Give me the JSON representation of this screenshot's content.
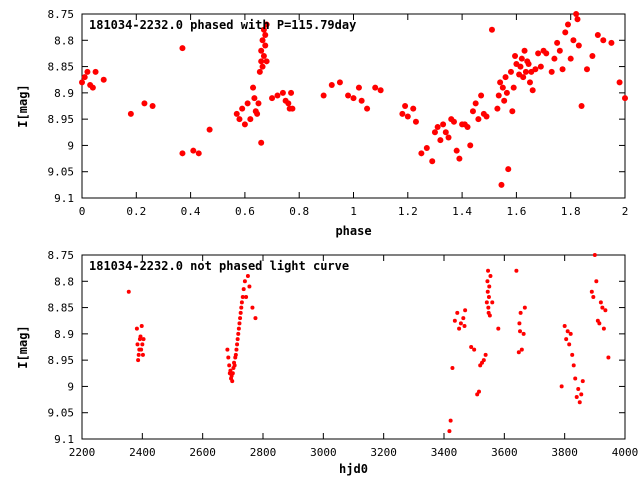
{
  "chart_data": [
    {
      "type": "scatter",
      "title": "181034-2232.0 phased with P=115.79day",
      "xlabel": "phase",
      "ylabel": "I[mag]",
      "xlim": [
        0,
        2
      ],
      "ylim": [
        8.75,
        9.1
      ],
      "y_inverted": true,
      "marker_color": "#ff0000",
      "x_ticks": [
        0,
        0.2,
        0.4,
        0.6,
        0.8,
        1,
        1.2,
        1.4,
        1.6,
        1.8,
        2
      ],
      "x_tick_labels": [
        "0",
        "0.2",
        "0.4",
        "0.6",
        "0.8",
        "1",
        "1.2",
        "1.4",
        "1.6",
        "1.8",
        "2"
      ],
      "y_ticks": [
        8.75,
        8.8,
        8.85,
        8.9,
        8.95,
        9,
        9.05,
        9.1
      ],
      "y_tick_labels": [
        "8.75",
        "8.8",
        "8.85",
        "8.9",
        "8.95",
        "9",
        "9.05",
        "9.1"
      ],
      "points": [
        [
          0.0,
          8.88
        ],
        [
          0.01,
          8.87
        ],
        [
          0.02,
          8.86
        ],
        [
          0.03,
          8.885
        ],
        [
          0.04,
          8.89
        ],
        [
          0.05,
          8.86
        ],
        [
          0.08,
          8.875
        ],
        [
          0.18,
          8.94
        ],
        [
          0.23,
          8.92
        ],
        [
          0.26,
          8.925
        ],
        [
          0.37,
          8.815
        ],
        [
          0.37,
          9.015
        ],
        [
          0.41,
          9.01
        ],
        [
          0.43,
          9.015
        ],
        [
          0.47,
          8.97
        ],
        [
          0.57,
          8.94
        ],
        [
          0.58,
          8.95
        ],
        [
          0.59,
          8.93
        ],
        [
          0.6,
          8.96
        ],
        [
          0.61,
          8.92
        ],
        [
          0.62,
          8.95
        ],
        [
          0.63,
          8.89
        ],
        [
          0.635,
          8.91
        ],
        [
          0.64,
          8.935
        ],
        [
          0.645,
          8.94
        ],
        [
          0.65,
          8.92
        ],
        [
          0.655,
          8.86
        ],
        [
          0.66,
          8.84
        ],
        [
          0.66,
          8.82
        ],
        [
          0.665,
          8.85
        ],
        [
          0.665,
          8.8
        ],
        [
          0.67,
          8.78
        ],
        [
          0.67,
          8.83
        ],
        [
          0.675,
          8.81
        ],
        [
          0.675,
          8.79
        ],
        [
          0.68,
          8.77
        ],
        [
          0.68,
          8.84
        ],
        [
          0.66,
          8.995
        ],
        [
          0.7,
          8.91
        ],
        [
          0.72,
          8.905
        ],
        [
          0.74,
          8.9
        ],
        [
          0.75,
          8.915
        ],
        [
          0.76,
          8.92
        ],
        [
          0.765,
          8.93
        ],
        [
          0.77,
          8.9
        ],
        [
          0.775,
          8.93
        ],
        [
          0.89,
          8.905
        ],
        [
          0.92,
          8.885
        ],
        [
          0.95,
          8.88
        ],
        [
          0.98,
          8.905
        ],
        [
          1.0,
          8.91
        ],
        [
          1.02,
          8.89
        ],
        [
          1.03,
          8.915
        ],
        [
          1.05,
          8.93
        ],
        [
          1.08,
          8.89
        ],
        [
          1.1,
          8.895
        ],
        [
          1.18,
          8.94
        ],
        [
          1.19,
          8.925
        ],
        [
          1.2,
          8.945
        ],
        [
          1.22,
          8.93
        ],
        [
          1.23,
          8.955
        ],
        [
          1.25,
          9.015
        ],
        [
          1.27,
          9.005
        ],
        [
          1.29,
          9.03
        ],
        [
          1.3,
          8.975
        ],
        [
          1.31,
          8.965
        ],
        [
          1.32,
          8.99
        ],
        [
          1.33,
          8.96
        ],
        [
          1.34,
          8.975
        ],
        [
          1.35,
          8.985
        ],
        [
          1.36,
          8.95
        ],
        [
          1.37,
          8.955
        ],
        [
          1.38,
          9.01
        ],
        [
          1.39,
          9.025
        ],
        [
          1.4,
          8.96
        ],
        [
          1.41,
          8.96
        ],
        [
          1.42,
          8.965
        ],
        [
          1.43,
          9.0
        ],
        [
          1.44,
          8.935
        ],
        [
          1.45,
          8.92
        ],
        [
          1.46,
          8.95
        ],
        [
          1.47,
          8.905
        ],
        [
          1.48,
          8.94
        ],
        [
          1.49,
          8.945
        ],
        [
          1.51,
          8.78
        ],
        [
          1.53,
          8.93
        ],
        [
          1.535,
          8.905
        ],
        [
          1.54,
          8.88
        ],
        [
          1.545,
          9.075
        ],
        [
          1.55,
          8.89
        ],
        [
          1.555,
          8.915
        ],
        [
          1.56,
          8.87
        ],
        [
          1.565,
          8.9
        ],
        [
          1.57,
          9.045
        ],
        [
          1.58,
          8.86
        ],
        [
          1.585,
          8.935
        ],
        [
          1.59,
          8.89
        ],
        [
          1.595,
          8.83
        ],
        [
          1.6,
          8.845
        ],
        [
          1.61,
          8.865
        ],
        [
          1.615,
          8.85
        ],
        [
          1.62,
          8.835
        ],
        [
          1.625,
          8.87
        ],
        [
          1.63,
          8.82
        ],
        [
          1.635,
          8.86
        ],
        [
          1.64,
          8.84
        ],
        [
          1.645,
          8.845
        ],
        [
          1.65,
          8.88
        ],
        [
          1.655,
          8.86
        ],
        [
          1.66,
          8.895
        ],
        [
          1.67,
          8.855
        ],
        [
          1.68,
          8.825
        ],
        [
          1.69,
          8.85
        ],
        [
          1.7,
          8.82
        ],
        [
          1.71,
          8.825
        ],
        [
          1.73,
          8.86
        ],
        [
          1.74,
          8.835
        ],
        [
          1.75,
          8.805
        ],
        [
          1.76,
          8.82
        ],
        [
          1.77,
          8.855
        ],
        [
          1.78,
          8.785
        ],
        [
          1.79,
          8.77
        ],
        [
          1.8,
          8.835
        ],
        [
          1.81,
          8.8
        ],
        [
          1.82,
          8.75
        ],
        [
          1.825,
          8.76
        ],
        [
          1.83,
          8.81
        ],
        [
          1.84,
          8.925
        ],
        [
          1.86,
          8.855
        ],
        [
          1.88,
          8.83
        ],
        [
          1.9,
          8.79
        ],
        [
          1.92,
          8.8
        ],
        [
          1.95,
          8.805
        ],
        [
          1.98,
          8.88
        ],
        [
          2.0,
          8.91
        ]
      ]
    },
    {
      "type": "scatter",
      "title": "181034-2232.0 not phased light curve",
      "xlabel": "hjd0",
      "ylabel": "I[mag]",
      "xlim": [
        2200,
        4000
      ],
      "ylim": [
        8.75,
        9.1
      ],
      "y_inverted": true,
      "marker_color": "#ff0000",
      "x_ticks": [
        2200,
        2400,
        2600,
        2800,
        3000,
        3200,
        3400,
        3600,
        3800,
        4000
      ],
      "x_tick_labels": [
        "2200",
        "2400",
        "2600",
        "2800",
        "3000",
        "3200",
        "3400",
        "3600",
        "3800",
        "4000"
      ],
      "y_ticks": [
        8.75,
        8.8,
        8.85,
        8.9,
        8.95,
        9,
        9.05,
        9.1
      ],
      "y_tick_labels": [
        "8.75",
        "8.8",
        "8.85",
        "8.9",
        "8.95",
        "9",
        "9.05",
        "9.1"
      ],
      "points": [
        [
          2355,
          8.82
        ],
        [
          2382,
          8.89
        ],
        [
          2384,
          8.92
        ],
        [
          2386,
          8.95
        ],
        [
          2388,
          8.94
        ],
        [
          2390,
          8.93
        ],
        [
          2392,
          8.91
        ],
        [
          2394,
          8.905
        ],
        [
          2396,
          8.93
        ],
        [
          2398,
          8.885
        ],
        [
          2400,
          8.92
        ],
        [
          2402,
          8.94
        ],
        [
          2404,
          8.91
        ],
        [
          2682,
          8.93
        ],
        [
          2685,
          8.945
        ],
        [
          2688,
          8.96
        ],
        [
          2690,
          8.975
        ],
        [
          2692,
          8.97
        ],
        [
          2694,
          8.985
        ],
        [
          2696,
          8.98
        ],
        [
          2698,
          8.99
        ],
        [
          2700,
          8.975
        ],
        [
          2702,
          8.965
        ],
        [
          2704,
          8.955
        ],
        [
          2706,
          8.96
        ],
        [
          2708,
          8.945
        ],
        [
          2710,
          8.94
        ],
        [
          2712,
          8.93
        ],
        [
          2714,
          8.92
        ],
        [
          2716,
          8.91
        ],
        [
          2718,
          8.9
        ],
        [
          2720,
          8.89
        ],
        [
          2722,
          8.88
        ],
        [
          2724,
          8.87
        ],
        [
          2726,
          8.86
        ],
        [
          2728,
          8.85
        ],
        [
          2730,
          8.84
        ],
        [
          2733,
          8.83
        ],
        [
          2736,
          8.815
        ],
        [
          2740,
          8.8
        ],
        [
          2744,
          8.83
        ],
        [
          2750,
          8.79
        ],
        [
          2755,
          8.81
        ],
        [
          2765,
          8.85
        ],
        [
          2775,
          8.87
        ],
        [
          3418,
          9.085
        ],
        [
          3422,
          9.065
        ],
        [
          3428,
          8.965
        ],
        [
          3436,
          8.875
        ],
        [
          3444,
          8.86
        ],
        [
          3450,
          8.89
        ],
        [
          3456,
          8.88
        ],
        [
          3464,
          8.87
        ],
        [
          3468,
          8.885
        ],
        [
          3470,
          8.855
        ],
        [
          3490,
          8.925
        ],
        [
          3500,
          8.93
        ],
        [
          3510,
          9.015
        ],
        [
          3516,
          9.01
        ],
        [
          3520,
          8.96
        ],
        [
          3526,
          8.955
        ],
        [
          3532,
          8.95
        ],
        [
          3538,
          8.94
        ],
        [
          3542,
          8.84
        ],
        [
          3544,
          8.8
        ],
        [
          3545,
          8.82
        ],
        [
          3546,
          8.78
        ],
        [
          3547,
          8.85
        ],
        [
          3548,
          8.86
        ],
        [
          3549,
          8.83
        ],
        [
          3550,
          8.81
        ],
        [
          3552,
          8.865
        ],
        [
          3554,
          8.79
        ],
        [
          3560,
          8.84
        ],
        [
          3580,
          8.89
        ],
        [
          3640,
          8.78
        ],
        [
          3648,
          8.935
        ],
        [
          3650,
          8.88
        ],
        [
          3652,
          8.895
        ],
        [
          3654,
          8.86
        ],
        [
          3658,
          8.93
        ],
        [
          3664,
          8.9
        ],
        [
          3668,
          8.85
        ],
        [
          3790,
          9.0
        ],
        [
          3800,
          8.885
        ],
        [
          3805,
          8.91
        ],
        [
          3810,
          8.895
        ],
        [
          3815,
          8.92
        ],
        [
          3820,
          8.9
        ],
        [
          3825,
          8.94
        ],
        [
          3830,
          8.96
        ],
        [
          3835,
          8.985
        ],
        [
          3840,
          9.02
        ],
        [
          3845,
          9.005
        ],
        [
          3850,
          9.03
        ],
        [
          3855,
          9.015
        ],
        [
          3860,
          8.99
        ],
        [
          3890,
          8.82
        ],
        [
          3895,
          8.83
        ],
        [
          3900,
          8.75
        ],
        [
          3905,
          8.8
        ],
        [
          3910,
          8.875
        ],
        [
          3915,
          8.88
        ],
        [
          3920,
          8.84
        ],
        [
          3925,
          8.85
        ],
        [
          3930,
          8.89
        ],
        [
          3935,
          8.855
        ],
        [
          3945,
          8.945
        ]
      ]
    }
  ]
}
